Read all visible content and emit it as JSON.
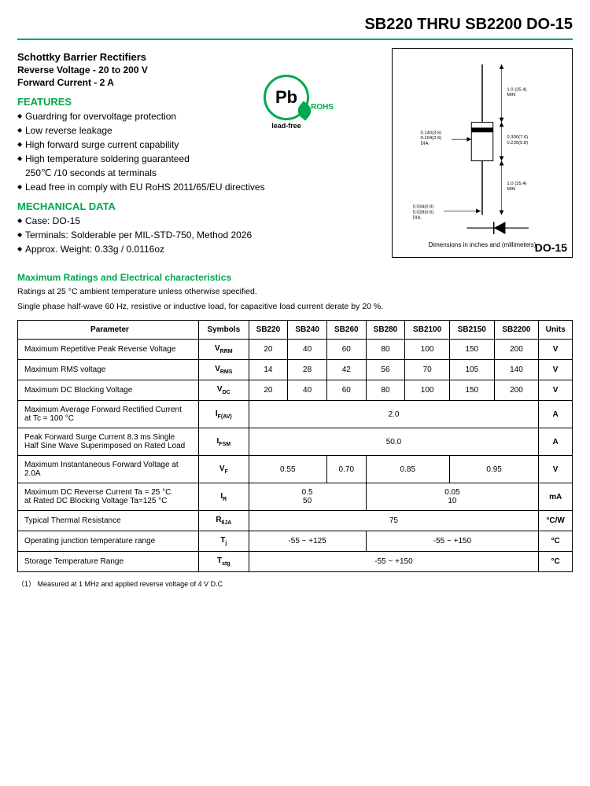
{
  "title": "SB220 THRU SB2200  DO-15",
  "subtitle": "Schottky Barrier Rectifiers",
  "spec1": "Reverse Voltage - 20 to 200 V",
  "spec2": "Forward Current - 2 A",
  "features_head": "FEATURES",
  "features": [
    "Guardring for overvoltage protection",
    "Low reverse leakage",
    "High forward surge current capability",
    "High temperature soldering guaranteed",
    "250℃ /10 seconds at terminals",
    "Lead free in comply with EU RoHS 2011/65/EU directives"
  ],
  "mech_head": "MECHANICAL DATA",
  "mech": [
    "Case: DO-15",
    "Terminals: Solderable per MIL-STD-750, Method 2026",
    "Approx. Weight: 0.33g / 0.0116oz"
  ],
  "rohs": {
    "symbol": "Pb",
    "side": "ROHS",
    "below": "lead-free"
  },
  "pkg": {
    "caption": "Dimensions in inches and (millimeters)",
    "label": "DO-15",
    "dim_top": "1.0 (25.4)\nMIN",
    "dim_mid_l": "0.140(3.6)\n0.104(2.6)\nDIA.",
    "dim_mid_r": "0.300(7.6)\n0.230(5.8)",
    "dim_bot": "1.0 (25.4)\nMIN",
    "dim_lead": "0.034(0.9)\n0.028(0.6)\nDIA."
  },
  "table_head": "Maximum Ratings and Electrical characteristics",
  "table_note1": "Ratings at 25 °C ambient temperature unless otherwise specified.",
  "table_note2": "Single phase half-wave 60 Hz, resistive or inductive load, for capacitive load current derate by 20 %.",
  "columns": [
    "Parameter",
    "Symbols",
    "SB220",
    "SB240",
    "SB260",
    "SB280",
    "SB2100",
    "SB2150",
    "SB2200",
    "Units"
  ],
  "rows": [
    {
      "param": "Maximum Repetitive Peak Reverse Voltage",
      "sym": "V",
      "sub": "RRM",
      "v": [
        "20",
        "40",
        "60",
        "80",
        "100",
        "150",
        "200"
      ],
      "unit": "V"
    },
    {
      "param": "Maximum RMS voltage",
      "sym": "V",
      "sub": "RMS",
      "v": [
        "14",
        "28",
        "42",
        "56",
        "70",
        "105",
        "140"
      ],
      "unit": "V"
    },
    {
      "param": "Maximum DC Blocking Voltage",
      "sym": "V",
      "sub": "DC",
      "v": [
        "20",
        "40",
        "60",
        "80",
        "100",
        "150",
        "200"
      ],
      "unit": "V"
    }
  ],
  "row_ifav": {
    "param": "Maximum Average Forward Rectified Current\nat Tc = 100 °C",
    "sym": "I",
    "sub": "F(AV)",
    "val": "2.0",
    "unit": "A"
  },
  "row_ifsm": {
    "param": "Peak Forward Surge Current 8.3 ms Single\nHalf Sine Wave Superimposed on Rated Load",
    "sym": "I",
    "sub": "FSM",
    "val": "50.0",
    "unit": "A"
  },
  "row_vf": {
    "param": "Maximum Instantaneous Forward Voltage at 2.0A",
    "sym": "V",
    "sub": "F",
    "v": [
      "0.55",
      "0.70",
      "0.85",
      "0.95"
    ],
    "spans": [
      2,
      1,
      2,
      2
    ],
    "unit": "V"
  },
  "row_ir": {
    "param": "Maximum DC Reverse Current   Ta = 25 °C\nat Rated DC Blocking Voltage    Ta=125 °C",
    "sym": "I",
    "sub": "R",
    "v": [
      "0.5\n50",
      "0.05\n10"
    ],
    "spans": [
      3,
      4
    ],
    "unit": "mA"
  },
  "row_rth": {
    "param": "Typical Thermal Resistance",
    "sym": "R",
    "sub": "θJA",
    "val": "75",
    "unit": "°C/W"
  },
  "row_tj": {
    "param": "Operating junction temperature range",
    "sym": "T",
    "sub": "j",
    "v": [
      "-55 ~ +125",
      "-55 ~ +150"
    ],
    "spans": [
      3,
      4
    ],
    "unit": "°C"
  },
  "row_tstg": {
    "param": "Storage Temperature Range",
    "sym": "T",
    "sub": "stg",
    "val": "-55 ~ +150",
    "unit": "°C"
  },
  "footnote": "（1） Measured at 1 MHz and applied reverse voltage of 4 V D.C",
  "colors": {
    "accent": "#00a84f",
    "border": "#000000",
    "text": "#000000",
    "bg": "#ffffff"
  }
}
